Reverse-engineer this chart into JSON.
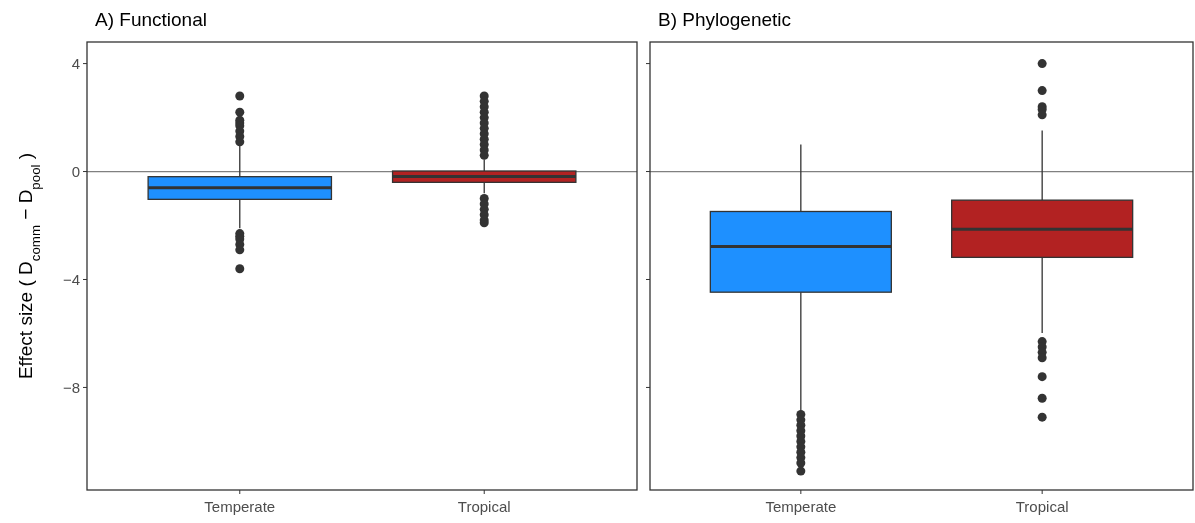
{
  "chart_data": [
    {
      "type": "box",
      "title": "A) Functional",
      "ylabel": "Effect size ( D$_{comm}$ − D$_{pool}$ )",
      "categories": [
        "Temperate",
        "Tropical"
      ],
      "colors": [
        "#1e90ff",
        "#b22222"
      ],
      "ylim": [
        -11.8,
        4.8
      ],
      "yticks": [
        4,
        0,
        {
          "value": -4,
          "label": "−4"
        },
        {
          "value": -8,
          "label": "−8"
        }
      ],
      "ref_lines": [
        {
          "axis": "y",
          "value": 0,
          "color": "#808080"
        }
      ],
      "boxes": [
        {
          "low": -2.1,
          "q1": -1.03,
          "median": -0.6,
          "q3": -0.19,
          "high": 0.96,
          "outliers": [
            2.8,
            2.2,
            1.9,
            1.8,
            1.7,
            1.5,
            1.3,
            1.1,
            -2.3,
            -2.4,
            -2.5,
            -2.7,
            -2.9,
            -3.6
          ]
        },
        {
          "low": -0.8,
          "q1": -0.4,
          "median": -0.18,
          "q3": 0.02,
          "high": 0.45,
          "outliers": [
            2.8,
            2.6,
            2.4,
            2.2,
            2.0,
            1.8,
            1.6,
            1.4,
            1.2,
            1.0,
            0.8,
            0.6,
            -1.0,
            -1.2,
            -1.4,
            -1.6,
            -1.8,
            -1.9
          ]
        }
      ]
    },
    {
      "type": "box",
      "title": "B) Phylogenetic",
      "categories": [
        "Temperate",
        "Tropical"
      ],
      "colors": [
        "#1e90ff",
        "#b22222"
      ],
      "ylim": [
        -11.8,
        4.8
      ],
      "yticks": [
        {
          "value": 4,
          "label": null
        },
        {
          "value": 0,
          "label": null
        },
        {
          "value": -4,
          "label": null
        },
        {
          "value": -8,
          "label": null
        }
      ],
      "tick_labels": "x",
      "ref_lines": [
        {
          "axis": "y",
          "value": 0,
          "color": "#808080"
        }
      ],
      "boxes": [
        {
          "low": -8.97,
          "q1": -4.47,
          "median": -2.78,
          "q3": -1.48,
          "high": 1.0,
          "outliers": [
            -9.0,
            -9.2,
            -9.4,
            -9.6,
            -9.8,
            -10.0,
            -10.2,
            -10.4,
            -10.6,
            -10.8,
            -11.1
          ]
        },
        {
          "low": -5.98,
          "q1": -3.18,
          "median": -2.14,
          "q3": -1.06,
          "high": 1.52,
          "outliers": [
            4.0,
            3.0,
            2.4,
            2.3,
            2.1,
            -6.3,
            -6.5,
            -6.7,
            -6.9,
            -7.6,
            -8.4,
            -9.1
          ]
        }
      ]
    }
  ]
}
